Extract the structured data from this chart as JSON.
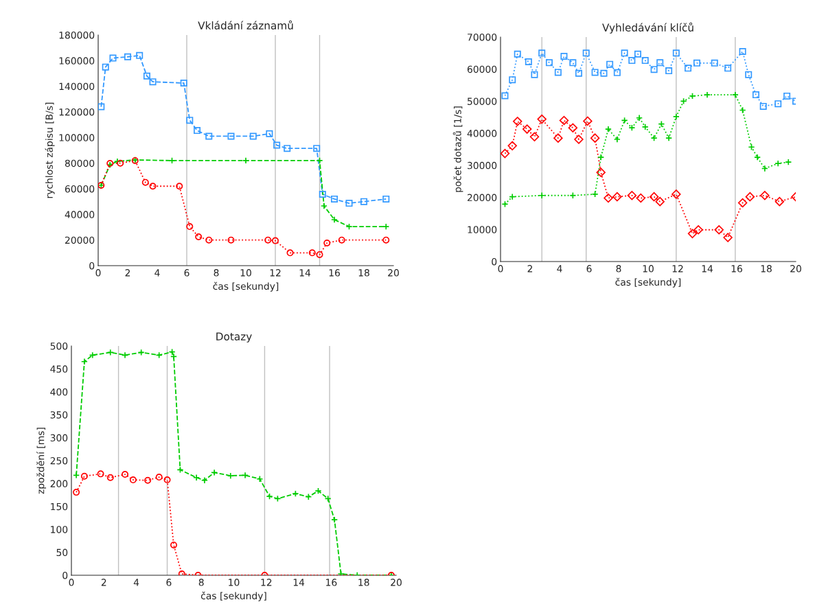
{
  "chart_data": [
    {
      "type": "line",
      "title": "Vkládání záznamů",
      "xlabel": "čas [sekundy]",
      "ylabel": "rychlost zápisu [B/s]",
      "xlim": [
        0,
        20
      ],
      "xticks": [
        0,
        2,
        4,
        6,
        8,
        10,
        12,
        14,
        16,
        18,
        20
      ],
      "ylim": [
        0,
        180000
      ],
      "yticks": [
        0,
        20000,
        40000,
        60000,
        80000,
        100000,
        120000,
        140000,
        160000,
        180000
      ],
      "grid": false,
      "legend": false,
      "ref_lines": [
        {
          "axis": "x",
          "value": 6,
          "color": "#c0c0c0"
        },
        {
          "axis": "x",
          "value": 12,
          "color": "#c0c0c0"
        },
        {
          "axis": "x",
          "value": 15,
          "color": "#c0c0c0"
        }
      ],
      "series": [
        {
          "color": "#3399ff",
          "marker": "square",
          "line_style": "dashed",
          "x": [
            0.2,
            0.5,
            1,
            2,
            2.8,
            3.3,
            3.7,
            5.8,
            6.2,
            6.7,
            7.5,
            9,
            10.5,
            11.6,
            12.1,
            12.8,
            14.8,
            15.2,
            16,
            17,
            18,
            19.5
          ],
          "values": [
            124000,
            155000,
            162000,
            163000,
            164000,
            148000,
            143500,
            142500,
            113500,
            105500,
            101000,
            101000,
            101000,
            103000,
            94000,
            91500,
            91500,
            55700,
            52000,
            48700,
            50000,
            52000
          ]
        },
        {
          "color": "#00cc00",
          "marker": "cross",
          "line_style": "dashed",
          "x": [
            0.2,
            0.8,
            1.3,
            2.5,
            5,
            10,
            15,
            15.3,
            16,
            17,
            19.5
          ],
          "values": [
            62700,
            78700,
            81400,
            82500,
            82000,
            82000,
            82000,
            46600,
            35900,
            30500,
            30500
          ]
        },
        {
          "color": "#ff0000",
          "marker": "circle",
          "line_style": "dotted",
          "x": [
            0.2,
            0.8,
            1.5,
            2.5,
            3.2,
            3.7,
            5.5,
            6.2,
            6.8,
            7.5,
            9,
            11.5,
            12,
            13,
            14.5,
            15,
            15.5,
            16.5,
            19.5
          ],
          "values": [
            62700,
            79800,
            80000,
            82000,
            65000,
            62000,
            62000,
            30500,
            22500,
            20000,
            20000,
            20000,
            19500,
            10000,
            10000,
            8600,
            17700,
            20000,
            20000
          ]
        }
      ]
    },
    {
      "type": "line",
      "title": "Vyhledávání klíčů",
      "xlabel": "čas [sekundy]",
      "ylabel": "počet dotazů [1/s]",
      "xlim": [
        0,
        20
      ],
      "xticks": [
        0,
        2,
        4,
        6,
        8,
        10,
        12,
        14,
        16,
        18,
        20
      ],
      "ylim": [
        0,
        70000
      ],
      "yticks": [
        0,
        10000,
        20000,
        30000,
        40000,
        50000,
        60000,
        70000
      ],
      "grid": false,
      "legend": false,
      "ref_lines": [
        {
          "axis": "x",
          "value": 2.8,
          "color": "#c0c0c0"
        },
        {
          "axis": "x",
          "value": 5.8,
          "color": "#c0c0c0"
        },
        {
          "axis": "x",
          "value": 11.9,
          "color": "#c0c0c0"
        },
        {
          "axis": "x",
          "value": 15.9,
          "color": "#c0c0c0"
        }
      ],
      "series": [
        {
          "color": "#3399ff",
          "marker": "square",
          "line_style": "dotted",
          "x": [
            0.3,
            0.8,
            1.15,
            1.9,
            2.3,
            2.8,
            3.3,
            3.9,
            4.3,
            4.9,
            5.3,
            5.8,
            6.4,
            7,
            7.4,
            7.9,
            8.4,
            8.9,
            9.3,
            9.8,
            10.4,
            10.8,
            11.4,
            11.9,
            12.7,
            13.3,
            14.5,
            15.4,
            16.4,
            16.8,
            17.3,
            17.8,
            18.8,
            19.4,
            20
          ],
          "values": [
            51700,
            56700,
            64700,
            62300,
            58300,
            65000,
            62000,
            59000,
            64000,
            62000,
            58700,
            65000,
            59000,
            58700,
            61500,
            58900,
            65000,
            62700,
            64700,
            62700,
            59900,
            62000,
            59500,
            65000,
            60300,
            61900,
            61900,
            60300,
            65500,
            58300,
            52000,
            48400,
            49200,
            51600,
            50000
          ]
        },
        {
          "color": "#00cc00",
          "marker": "cross",
          "line_style": "dotted",
          "x": [
            0.3,
            0.8,
            2.8,
            4.9,
            6.4,
            6.8,
            7.3,
            7.9,
            8.4,
            8.9,
            9.4,
            9.8,
            10.4,
            10.9,
            11.4,
            11.9,
            12.4,
            13,
            14,
            15.9,
            16.4,
            17,
            17.4,
            17.9,
            18.8,
            19.5
          ],
          "values": [
            17900,
            20200,
            20600,
            20600,
            21000,
            32500,
            41300,
            38100,
            44000,
            41700,
            44800,
            42000,
            38500,
            42900,
            38500,
            45200,
            50000,
            51600,
            52000,
            52000,
            47200,
            35700,
            32500,
            29000,
            30600,
            31000
          ]
        },
        {
          "color": "#ff0000",
          "marker": "diamond",
          "line_style": "dotted",
          "x": [
            0.3,
            0.8,
            1.15,
            1.8,
            2.3,
            2.8,
            3.9,
            4.3,
            4.9,
            5.3,
            5.9,
            6.4,
            6.8,
            7.3,
            7.9,
            8.9,
            9.5,
            10.4,
            10.8,
            11.9,
            13,
            13.4,
            14.8,
            15.4,
            16.4,
            16.9,
            17.9,
            18.9,
            20
          ],
          "values": [
            33700,
            36100,
            43700,
            41300,
            38900,
            44400,
            38500,
            44000,
            41700,
            38100,
            43800,
            38500,
            27800,
            19800,
            20200,
            20600,
            19800,
            20200,
            18700,
            21000,
            8700,
            9900,
            9900,
            7500,
            18300,
            20200,
            20600,
            18700,
            20200
          ]
        }
      ]
    },
    {
      "type": "line",
      "title": "Dotazy",
      "xlabel": "čas [sekundy]",
      "ylabel": "zpoždění [ms]",
      "xlim": [
        0,
        20
      ],
      "xticks": [
        0,
        2,
        4,
        6,
        8,
        10,
        12,
        14,
        16,
        18,
        20
      ],
      "ylim": [
        0,
        500
      ],
      "yticks": [
        0,
        50,
        100,
        150,
        200,
        250,
        300,
        350,
        400,
        450,
        500
      ],
      "grid": false,
      "legend": false,
      "ref_lines": [
        {
          "axis": "x",
          "value": 2.9,
          "color": "#c0c0c0"
        },
        {
          "axis": "x",
          "value": 5.9,
          "color": "#c0c0c0"
        },
        {
          "axis": "x",
          "value": 11.9,
          "color": "#c0c0c0"
        },
        {
          "axis": "x",
          "value": 15.9,
          "color": "#c0c0c0"
        }
      ],
      "series": [
        {
          "color": "#00cc00",
          "marker": "cross",
          "line_style": "dashed",
          "x": [
            0.3,
            0.8,
            1.3,
            2.4,
            3.3,
            4.3,
            5.4,
            6.2,
            6.3,
            6.7,
            7.7,
            8.2,
            8.8,
            9.8,
            10.7,
            11.6,
            12.2,
            12.7,
            13.8,
            14.6,
            15.2,
            15.8,
            16.2,
            16.6,
            17.6,
            19.7
          ],
          "values": [
            218,
            466,
            480,
            486,
            480,
            486,
            480,
            487,
            477,
            230,
            213,
            207,
            224,
            217,
            218,
            210,
            172,
            167,
            178,
            171,
            184,
            167,
            121,
            3,
            0,
            0
          ]
        },
        {
          "color": "#ff0000",
          "marker": "circle",
          "line_style": "dotted",
          "x": [
            0.3,
            0.8,
            1.8,
            2.4,
            3.3,
            3.8,
            4.7,
            5.4,
            5.9,
            6.3,
            6.8,
            7.8,
            11.9,
            19.7
          ],
          "values": [
            181,
            216,
            221,
            213,
            220,
            208,
            207,
            214,
            208,
            66,
            3,
            0,
            0,
            0
          ]
        }
      ]
    }
  ]
}
